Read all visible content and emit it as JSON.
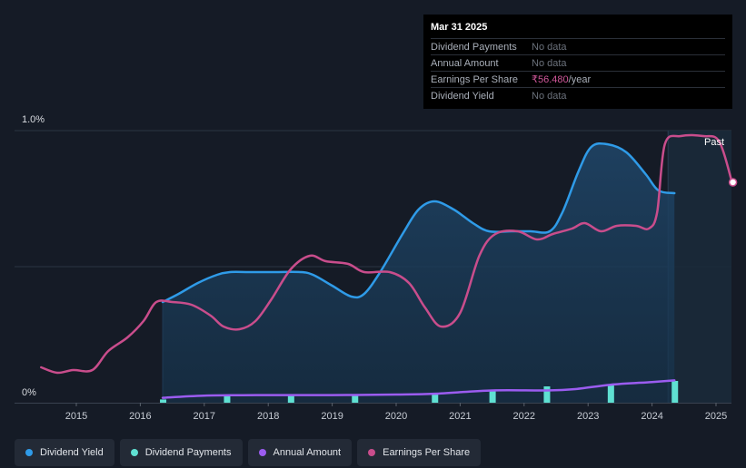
{
  "chart_data": {
    "type": "line",
    "y_axis": {
      "max_label": "1.0%",
      "min_label": "0%",
      "ylim": [
        0,
        1.0
      ]
    },
    "x_ticks": [
      "2015",
      "2016",
      "2017",
      "2018",
      "2019",
      "2020",
      "2021",
      "2022",
      "2023",
      "2024",
      "2025"
    ],
    "xlim": [
      2014.5,
      2025.25
    ],
    "past_label": "Past",
    "past_start": 2024.25,
    "series": [
      {
        "name": "Dividend Yield",
        "color": "#2f9be8",
        "area": true,
        "points": [
          [
            2016.35,
            0.37
          ],
          [
            2016.6,
            0.4
          ],
          [
            2016.9,
            0.44
          ],
          [
            2017.2,
            0.47
          ],
          [
            2017.4,
            0.48
          ],
          [
            2017.7,
            0.48
          ],
          [
            2018.1,
            0.48
          ],
          [
            2018.5,
            0.48
          ],
          [
            2018.7,
            0.47
          ],
          [
            2019.0,
            0.43
          ],
          [
            2019.3,
            0.39
          ],
          [
            2019.5,
            0.4
          ],
          [
            2019.75,
            0.48
          ],
          [
            2020.1,
            0.62
          ],
          [
            2020.35,
            0.71
          ],
          [
            2020.6,
            0.74
          ],
          [
            2020.9,
            0.71
          ],
          [
            2021.2,
            0.66
          ],
          [
            2021.45,
            0.63
          ],
          [
            2021.8,
            0.63
          ],
          [
            2022.1,
            0.63
          ],
          [
            2022.4,
            0.63
          ],
          [
            2022.6,
            0.7
          ],
          [
            2022.85,
            0.85
          ],
          [
            2023.05,
            0.94
          ],
          [
            2023.3,
            0.95
          ],
          [
            2023.6,
            0.92
          ],
          [
            2023.9,
            0.84
          ],
          [
            2024.1,
            0.78
          ],
          [
            2024.35,
            0.77
          ]
        ]
      },
      {
        "name": "Dividend Payments",
        "color": "#5fe0d2",
        "bars": true,
        "points": [
          [
            2016.35,
            0.012
          ],
          [
            2017.35,
            0.03
          ],
          [
            2018.35,
            0.025
          ],
          [
            2019.35,
            0.03
          ],
          [
            2020.6,
            0.035
          ],
          [
            2021.5,
            0.045
          ],
          [
            2022.35,
            0.06
          ],
          [
            2023.35,
            0.065
          ],
          [
            2024.35,
            0.08
          ]
        ]
      },
      {
        "name": "Annual Amount",
        "color": "#9b5cf0",
        "points": [
          [
            2016.35,
            0.018
          ],
          [
            2017.0,
            0.026
          ],
          [
            2018.0,
            0.028
          ],
          [
            2019.0,
            0.028
          ],
          [
            2020.0,
            0.03
          ],
          [
            2020.6,
            0.033
          ],
          [
            2021.5,
            0.045
          ],
          [
            2022.35,
            0.045
          ],
          [
            2022.8,
            0.05
          ],
          [
            2023.35,
            0.066
          ],
          [
            2024.0,
            0.076
          ],
          [
            2024.35,
            0.082
          ]
        ]
      },
      {
        "name": "Earnings Per Share",
        "color": "#c94d8c",
        "points": [
          [
            2014.45,
            0.13
          ],
          [
            2014.7,
            0.11
          ],
          [
            2014.95,
            0.12
          ],
          [
            2015.25,
            0.12
          ],
          [
            2015.5,
            0.19
          ],
          [
            2015.8,
            0.24
          ],
          [
            2016.05,
            0.3
          ],
          [
            2016.25,
            0.37
          ],
          [
            2016.5,
            0.37
          ],
          [
            2016.8,
            0.36
          ],
          [
            2017.1,
            0.32
          ],
          [
            2017.3,
            0.28
          ],
          [
            2017.55,
            0.27
          ],
          [
            2017.8,
            0.3
          ],
          [
            2018.05,
            0.38
          ],
          [
            2018.35,
            0.49
          ],
          [
            2018.65,
            0.54
          ],
          [
            2018.9,
            0.52
          ],
          [
            2019.25,
            0.51
          ],
          [
            2019.5,
            0.48
          ],
          [
            2019.9,
            0.48
          ],
          [
            2020.2,
            0.44
          ],
          [
            2020.45,
            0.35
          ],
          [
            2020.7,
            0.28
          ],
          [
            2021.0,
            0.33
          ],
          [
            2021.3,
            0.54
          ],
          [
            2021.55,
            0.62
          ],
          [
            2021.9,
            0.63
          ],
          [
            2022.2,
            0.6
          ],
          [
            2022.45,
            0.62
          ],
          [
            2022.75,
            0.64
          ],
          [
            2022.95,
            0.66
          ],
          [
            2023.2,
            0.63
          ],
          [
            2023.45,
            0.65
          ],
          [
            2023.75,
            0.65
          ],
          [
            2023.95,
            0.64
          ],
          [
            2024.08,
            0.7
          ],
          [
            2024.2,
            0.95
          ],
          [
            2024.45,
            0.98
          ],
          [
            2024.8,
            0.98
          ],
          [
            2025.05,
            0.96
          ],
          [
            2025.25,
            0.81
          ]
        ]
      }
    ]
  },
  "tooltip": {
    "date": "Mar 31 2025",
    "rows": [
      {
        "label": "Dividend Payments",
        "value": "No data"
      },
      {
        "label": "Annual Amount",
        "value": "No data"
      },
      {
        "label": "Earnings Per Share",
        "value": "₹56.480",
        "unit": "/year"
      },
      {
        "label": "Dividend Yield",
        "value": "No data"
      }
    ]
  },
  "legend": [
    {
      "label": "Dividend Yield",
      "color": "#2f9be8"
    },
    {
      "label": "Dividend Payments",
      "color": "#5fe0d2"
    },
    {
      "label": "Annual Amount",
      "color": "#9b5cf0"
    },
    {
      "label": "Earnings Per Share",
      "color": "#c94d8c"
    }
  ]
}
